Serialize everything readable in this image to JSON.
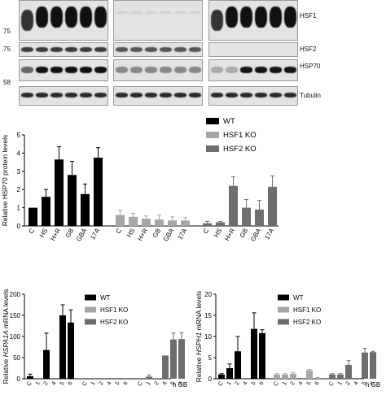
{
  "blot": {
    "markers": [
      "75",
      "75",
      "58"
    ],
    "bands": [
      "HSF1",
      "HSF2",
      "HSP70",
      "Tubulin"
    ]
  },
  "protein_chart": {
    "ylabel": "Relative HSP70 protein levels",
    "legend": [
      "WT",
      "HSF1 KO",
      "HSF2 KO"
    ]
  },
  "chart_data": [
    {
      "type": "bar",
      "title": "",
      "ylabel": "Relative HSP70 protein levels",
      "ylim": [
        0,
        5
      ],
      "yticks": [
        0,
        1,
        2,
        3,
        4,
        5
      ],
      "legend_position": "top-right",
      "groups": [
        {
          "name": "WT",
          "color": "#000000",
          "categories": [
            "C",
            "HS",
            "H+R",
            "GB",
            "GBA",
            "17A"
          ],
          "values": [
            1.0,
            1.6,
            3.65,
            2.8,
            1.75,
            3.75
          ],
          "errors": [
            0.0,
            0.4,
            0.7,
            0.75,
            0.55,
            0.55
          ]
        },
        {
          "name": "HSF1 KO",
          "color": "#a6a6a6",
          "categories": [
            "C",
            "HS",
            "H+R",
            "GB",
            "GBA",
            "17A"
          ],
          "values": [
            0.6,
            0.5,
            0.4,
            0.35,
            0.3,
            0.3
          ],
          "errors": [
            0.25,
            0.2,
            0.15,
            0.25,
            0.2,
            0.15
          ]
        },
        {
          "name": "HSF2 KO",
          "color": "#6e6e6e",
          "categories": [
            "C",
            "HS",
            "H+R",
            "GB",
            "GBA",
            "17A"
          ],
          "values": [
            0.15,
            0.2,
            2.2,
            1.0,
            0.9,
            2.15
          ],
          "errors": [
            0.1,
            0.05,
            0.5,
            0.45,
            0.5,
            0.6
          ]
        }
      ]
    },
    {
      "type": "bar",
      "title": "",
      "ylabel": "Relative HSPA1A mRNA levels",
      "ylabel_italic": "HSPA1A",
      "ylim": [
        0,
        200
      ],
      "yticks": [
        0,
        50,
        100,
        150,
        200
      ],
      "xlabel_suffix": "h GB",
      "legend_position": "top-right",
      "groups": [
        {
          "name": "WT",
          "color": "#000000",
          "categories": [
            "C",
            "1",
            "2",
            "4",
            "5",
            "6"
          ],
          "values": [
            6,
            0,
            68,
            0,
            150,
            133
          ],
          "errors": [
            5,
            0,
            40,
            0,
            25,
            30
          ]
        },
        {
          "name": "HSF1 KO",
          "color": "#a6a6a6",
          "categories": [
            "C",
            "1",
            "2",
            "4",
            "5",
            "6"
          ],
          "values": [
            0,
            0,
            0,
            0,
            0,
            0
          ],
          "errors": [
            0,
            0,
            0,
            0,
            0,
            0
          ]
        },
        {
          "name": "HSF2 KO",
          "color": "#6e6e6e",
          "categories": [
            "C",
            "1",
            "2",
            "4",
            "5",
            "6"
          ],
          "values": [
            0,
            5,
            0,
            55,
            93,
            94
          ],
          "errors": [
            0,
            4,
            0,
            0,
            15,
            15
          ]
        }
      ]
    },
    {
      "type": "bar",
      "title": "",
      "ylabel": "Relative HSPH1 mRNA levels",
      "ylabel_italic": "HSPH1",
      "ylim": [
        0,
        20
      ],
      "yticks": [
        0,
        5,
        10,
        15,
        20
      ],
      "xlabel_suffix": "h GB",
      "legend_position": "top-right",
      "groups": [
        {
          "name": "WT",
          "color": "#000000",
          "categories": [
            "C",
            "1",
            "2",
            "4",
            "5",
            "6"
          ],
          "values": [
            1.0,
            2.5,
            6.5,
            0,
            11.8,
            10.8
          ],
          "errors": [
            0.2,
            1.0,
            3.5,
            0,
            3.8,
            0.8
          ]
        },
        {
          "name": "HSF1 KO",
          "color": "#a6a6a6",
          "categories": [
            "C",
            "1",
            "2",
            "4",
            "5",
            "6"
          ],
          "values": [
            1.0,
            1.0,
            1.2,
            0,
            2.0,
            0.2
          ],
          "errors": [
            0.2,
            0.2,
            0.3,
            0,
            0.2,
            0.1
          ]
        },
        {
          "name": "HSF2 KO",
          "color": "#6e6e6e",
          "categories": [
            "C",
            "1",
            "2",
            "4",
            "5",
            "6"
          ],
          "values": [
            1.0,
            1.0,
            3.3,
            0,
            6.2,
            6.3
          ],
          "errors": [
            0.2,
            0.2,
            1.0,
            0,
            1.0,
            0.2
          ]
        }
      ]
    }
  ]
}
